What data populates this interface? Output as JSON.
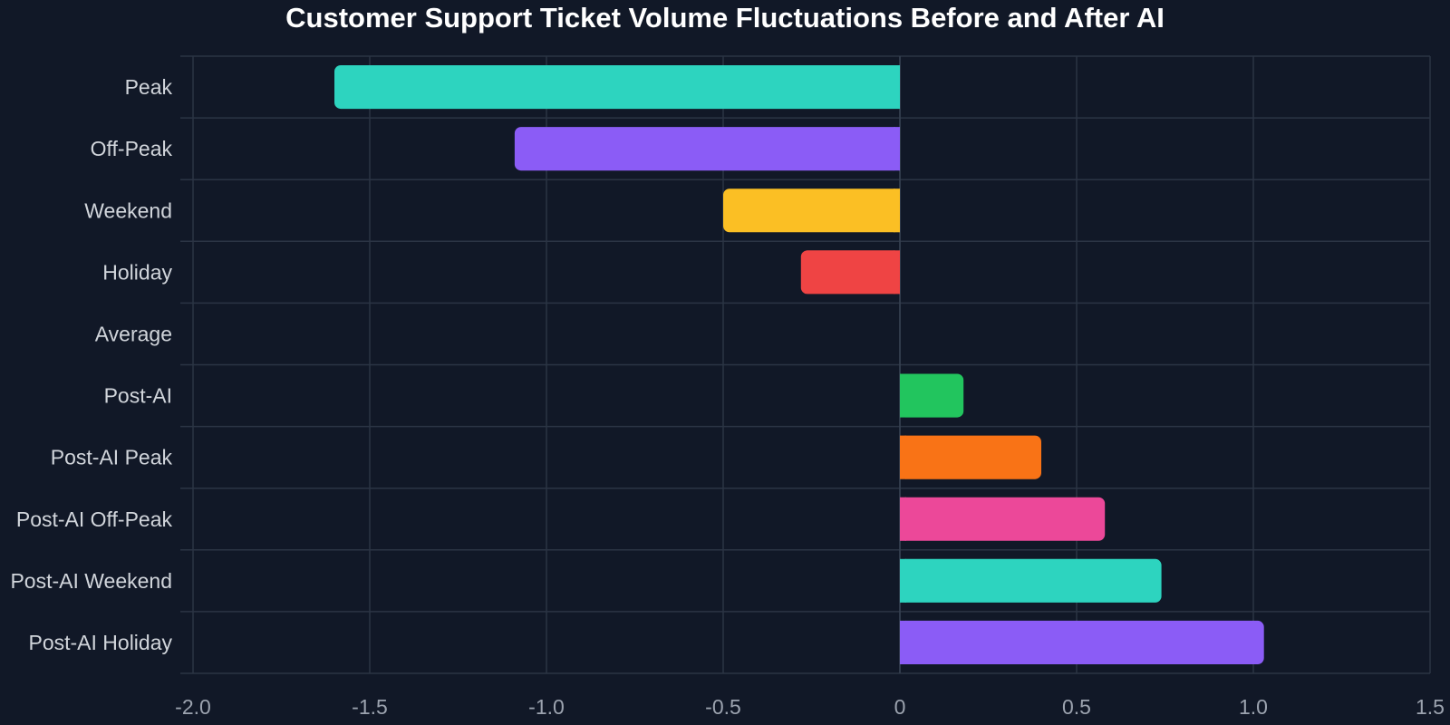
{
  "chart_data": {
    "type": "bar",
    "orientation": "horizontal",
    "title": "Customer Support Ticket Volume Fluctuations Before and After AI",
    "xlabel": "",
    "ylabel": "",
    "xlim": [
      -2.0,
      1.5
    ],
    "x_ticks": [
      -2.0,
      -1.5,
      -1.0,
      -0.5,
      0,
      0.5,
      1.0,
      1.5
    ],
    "x_tick_labels": [
      "-2.0",
      "-1.5",
      "-1.0",
      "-0.5",
      "0",
      "0.5",
      "1.0",
      "1.5"
    ],
    "grid": true,
    "categories": [
      "Peak",
      "Off-Peak",
      "Weekend",
      "Holiday",
      "Average",
      "Post-AI",
      "Post-AI Peak",
      "Post-AI Off-Peak",
      "Post-AI Weekend",
      "Post-AI Holiday"
    ],
    "values": [
      -1.6,
      -1.09,
      -0.5,
      -0.28,
      0,
      0.18,
      0.4,
      0.58,
      0.74,
      1.03
    ],
    "colors": [
      "#2dd4bf",
      "#8b5cf6",
      "#fbbf24",
      "#ef4444",
      "#14b8a6",
      "#22c55e",
      "#f97316",
      "#ec4899",
      "#2dd4bf",
      "#8b5cf6"
    ]
  }
}
